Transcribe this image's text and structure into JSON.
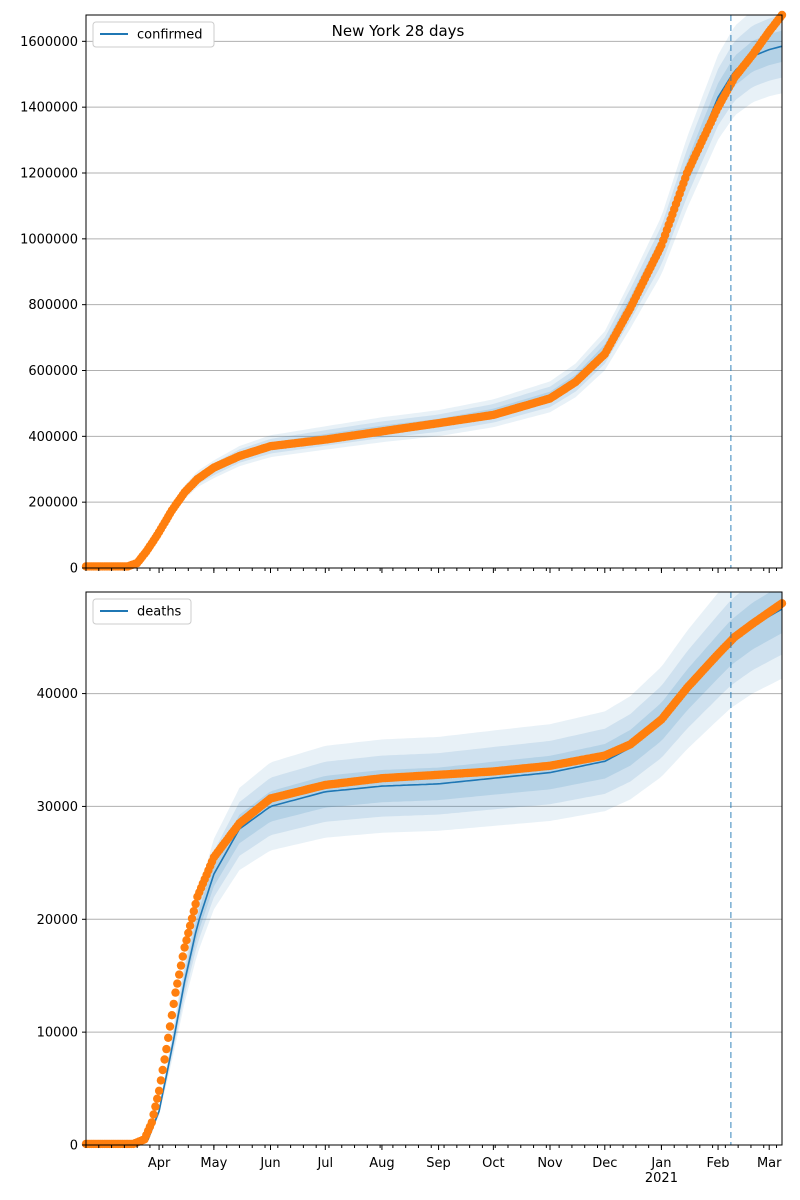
{
  "figure": {
    "title": "New York 28 days"
  },
  "colors": {
    "model": "#1f77b4",
    "observed": "#ff7f0e",
    "band": "#1f77b4",
    "grid": "#b0b0b0",
    "cutoff": "#1f77b4"
  },
  "x_axis": {
    "start": "2020-02-21",
    "end": "2021-03-08",
    "month_ticks": [
      {
        "date": "2020-04-01",
        "label": "Apr"
      },
      {
        "date": "2020-05-01",
        "label": "May"
      },
      {
        "date": "2020-06-01",
        "label": "Jun"
      },
      {
        "date": "2020-07-01",
        "label": "Jul"
      },
      {
        "date": "2020-08-01",
        "label": "Aug"
      },
      {
        "date": "2020-09-01",
        "label": "Sep"
      },
      {
        "date": "2020-10-01",
        "label": "Oct"
      },
      {
        "date": "2020-11-01",
        "label": "Nov"
      },
      {
        "date": "2020-12-01",
        "label": "Dec"
      },
      {
        "date": "2021-01-01",
        "label": "Jan"
      },
      {
        "date": "2021-02-01",
        "label": "Feb"
      },
      {
        "date": "2021-03-01",
        "label": "Mar"
      }
    ],
    "year_label": "2021",
    "cutoff_date": "2021-02-08"
  },
  "chart_data": [
    {
      "type": "line",
      "name": "confirmed",
      "legend": "confirmed",
      "legend_position": "top-left",
      "grid": "horizontal",
      "ylim": [
        0,
        1680000
      ],
      "yticks": [
        0,
        200000,
        400000,
        600000,
        800000,
        1000000,
        1200000,
        1400000,
        1600000
      ],
      "ytick_labels": [
        "0",
        "200000",
        "400000",
        "600000",
        "800000",
        "1000000",
        "1200000",
        "1400000",
        "1600000"
      ],
      "band_widths": [
        0.03,
        0.06,
        0.09
      ],
      "model_keypoints": [
        [
          "2020-02-21",
          0
        ],
        [
          "2020-03-15",
          0
        ],
        [
          "2020-03-20",
          15000
        ],
        [
          "2020-03-25",
          50000
        ],
        [
          "2020-03-31",
          100000
        ],
        [
          "2020-04-08",
          175000
        ],
        [
          "2020-04-15",
          230000
        ],
        [
          "2020-04-22",
          270000
        ],
        [
          "2020-05-01",
          300000
        ],
        [
          "2020-05-15",
          340000
        ],
        [
          "2020-06-01",
          370000
        ],
        [
          "2020-07-01",
          395000
        ],
        [
          "2020-08-01",
          420000
        ],
        [
          "2020-09-01",
          440000
        ],
        [
          "2020-10-01",
          470000
        ],
        [
          "2020-11-01",
          520000
        ],
        [
          "2020-11-15",
          570000
        ],
        [
          "2020-12-01",
          660000
        ],
        [
          "2020-12-15",
          800000
        ],
        [
          "2021-01-01",
          980000
        ],
        [
          "2021-01-15",
          1200000
        ],
        [
          "2021-02-01",
          1430000
        ],
        [
          "2021-02-10",
          1510000
        ],
        [
          "2021-02-20",
          1555000
        ],
        [
          "2021-03-01",
          1575000
        ],
        [
          "2021-03-08",
          1585000
        ]
      ],
      "observed_keypoints": [
        [
          "2020-02-21",
          5000
        ],
        [
          "2020-03-15",
          5000
        ],
        [
          "2020-03-20",
          15000
        ],
        [
          "2020-03-25",
          50000
        ],
        [
          "2020-03-31",
          100000
        ],
        [
          "2020-04-08",
          175000
        ],
        [
          "2020-04-15",
          230000
        ],
        [
          "2020-04-22",
          270000
        ],
        [
          "2020-05-01",
          305000
        ],
        [
          "2020-05-15",
          340000
        ],
        [
          "2020-06-01",
          370000
        ],
        [
          "2020-07-01",
          390000
        ],
        [
          "2020-08-01",
          415000
        ],
        [
          "2020-09-01",
          440000
        ],
        [
          "2020-10-01",
          465000
        ],
        [
          "2020-11-01",
          515000
        ],
        [
          "2020-11-15",
          565000
        ],
        [
          "2020-12-01",
          650000
        ],
        [
          "2020-12-15",
          790000
        ],
        [
          "2021-01-01",
          980000
        ],
        [
          "2021-01-15",
          1200000
        ],
        [
          "2021-02-01",
          1400000
        ],
        [
          "2021-02-10",
          1490000
        ],
        [
          "2021-02-20",
          1560000
        ],
        [
          "2021-03-01",
          1630000
        ],
        [
          "2021-03-08",
          1680000
        ]
      ]
    },
    {
      "type": "line",
      "name": "deaths",
      "legend": "deaths",
      "legend_position": "top-left",
      "grid": "horizontal",
      "ylim": [
        0,
        49000
      ],
      "yticks": [
        0,
        10000,
        20000,
        30000,
        40000
      ],
      "ytick_labels": [
        "0",
        "10000",
        "20000",
        "30000",
        "40000"
      ],
      "band_widths": [
        0.045,
        0.085,
        0.13
      ],
      "model_keypoints": [
        [
          "2020-02-21",
          0
        ],
        [
          "2020-03-20",
          0
        ],
        [
          "2020-03-26",
          500
        ],
        [
          "2020-04-01",
          3000
        ],
        [
          "2020-04-08",
          8500
        ],
        [
          "2020-04-15",
          14500
        ],
        [
          "2020-04-22",
          19500
        ],
        [
          "2020-05-01",
          24000
        ],
        [
          "2020-05-15",
          28000
        ],
        [
          "2020-06-01",
          30000
        ],
        [
          "2020-07-01",
          31300
        ],
        [
          "2020-08-01",
          31800
        ],
        [
          "2020-09-01",
          32000
        ],
        [
          "2020-10-01",
          32500
        ],
        [
          "2020-11-01",
          33000
        ],
        [
          "2020-12-01",
          34000
        ],
        [
          "2020-12-15",
          35200
        ],
        [
          "2021-01-01",
          37500
        ],
        [
          "2021-01-15",
          40300
        ],
        [
          "2021-02-01",
          43300
        ],
        [
          "2021-02-08",
          44500
        ],
        [
          "2021-02-20",
          46000
        ],
        [
          "2021-03-08",
          47500
        ]
      ],
      "observed_keypoints": [
        [
          "2020-02-21",
          100
        ],
        [
          "2020-03-18",
          100
        ],
        [
          "2020-03-24",
          500
        ],
        [
          "2020-03-28",
          2000
        ],
        [
          "2020-04-01",
          4800
        ],
        [
          "2020-04-05",
          8500
        ],
        [
          "2020-04-10",
          13500
        ],
        [
          "2020-04-15",
          17500
        ],
        [
          "2020-04-22",
          22000
        ],
        [
          "2020-05-01",
          25500
        ],
        [
          "2020-05-15",
          28500
        ],
        [
          "2020-06-01",
          30700
        ],
        [
          "2020-07-01",
          31900
        ],
        [
          "2020-08-01",
          32500
        ],
        [
          "2020-09-01",
          32800
        ],
        [
          "2020-10-01",
          33100
        ],
        [
          "2020-11-01",
          33600
        ],
        [
          "2020-12-01",
          34500
        ],
        [
          "2020-12-15",
          35500
        ],
        [
          "2021-01-01",
          37700
        ],
        [
          "2021-01-15",
          40500
        ],
        [
          "2021-02-01",
          43500
        ],
        [
          "2021-02-10",
          45000
        ],
        [
          "2021-02-20",
          46200
        ],
        [
          "2021-03-08",
          48000
        ]
      ]
    }
  ]
}
